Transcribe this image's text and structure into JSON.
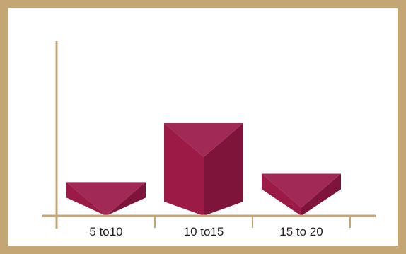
{
  "chart_data": {
    "type": "bar",
    "categories": [
      "5 to10",
      "10 to15",
      "15 to 20"
    ],
    "values": [
      4,
      11,
      5
    ],
    "ylim": [
      0,
      11
    ],
    "xlabel": "",
    "ylabel": "",
    "grid": false,
    "legend": "none",
    "colors": {
      "frame": "#c4a674",
      "axis": "#c4a674",
      "bar_front": "#9b1a46",
      "bar_side": "#7e143a",
      "bar_top": "#a02a55"
    }
  }
}
